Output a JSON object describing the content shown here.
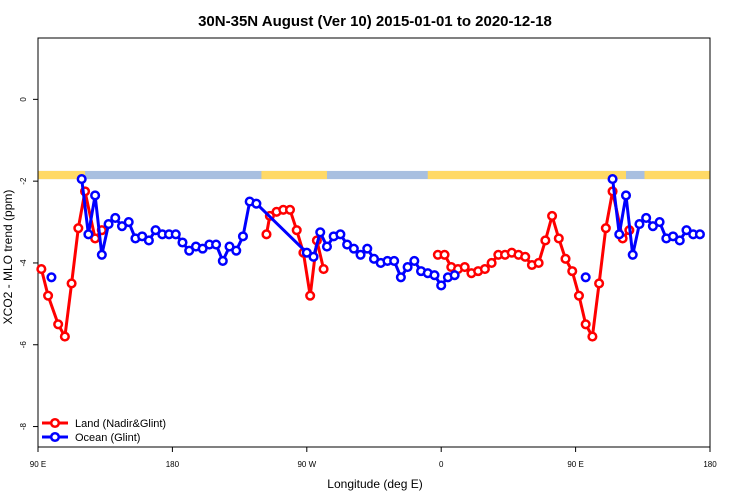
{
  "chart_data": {
    "type": "line",
    "title": "30N-35N August (Ver 10)   2015-01-01 to 2020-12-18",
    "xlabel": "Longitude (deg E)",
    "ylabel": "XCO2 - MLO trend (ppm)",
    "xlim": [
      0,
      400
    ],
    "ylim": [
      -8.5,
      1.5
    ],
    "x_ticks": [
      {
        "value": 0,
        "label": "90 E"
      },
      {
        "value": 80,
        "label": "180"
      },
      {
        "value": 160,
        "label": "90 W"
      },
      {
        "value": 240,
        "label": "0"
      },
      {
        "value": 320,
        "label": "90 E"
      },
      {
        "value": 400,
        "label": "180"
      }
    ],
    "y_ticks": [
      0,
      -2,
      -4,
      -6,
      -8
    ],
    "grid": false,
    "legend_position": "bottom-left",
    "surface_band": {
      "y_top": -1.75,
      "y_bottom": -1.95,
      "land_color": "#ffd966",
      "ocean_color": "#a8bfe0",
      "land_segments": [
        [
          0,
          28
        ],
        [
          133,
          172
        ],
        [
          232,
          350
        ],
        [
          361,
          400
        ]
      ]
    },
    "series": [
      {
        "name": "Land (Nadir&Glint)",
        "color": "#ff0000",
        "segments": [
          [
            [
              2,
              -4.15
            ],
            [
              6,
              -4.8
            ],
            [
              12,
              -5.5
            ],
            [
              16,
              -5.8
            ],
            [
              20,
              -4.5
            ],
            [
              24,
              -3.15
            ],
            [
              28,
              -2.25
            ],
            [
              34,
              -3.4
            ],
            [
              38,
              -3.2
            ]
          ],
          [
            [
              136,
              -3.3
            ],
            [
              138,
              -2.85
            ],
            [
              142,
              -2.75
            ],
            [
              146,
              -2.7
            ],
            [
              150,
              -2.7
            ],
            [
              154,
              -3.2
            ],
            [
              158,
              -3.75
            ],
            [
              162,
              -4.8
            ],
            [
              166,
              -3.45
            ],
            [
              170,
              -4.15
            ]
          ],
          [
            [
              238,
              -3.8
            ],
            [
              242,
              -3.8
            ],
            [
              246,
              -4.1
            ],
            [
              250,
              -4.15
            ],
            [
              254,
              -4.1
            ],
            [
              258,
              -4.25
            ],
            [
              262,
              -4.2
            ],
            [
              266,
              -4.15
            ],
            [
              270,
              -4.0
            ],
            [
              274,
              -3.8
            ],
            [
              278,
              -3.8
            ],
            [
              282,
              -3.75
            ],
            [
              286,
              -3.8
            ],
            [
              290,
              -3.85
            ],
            [
              294,
              -4.05
            ],
            [
              298,
              -4.0
            ],
            [
              302,
              -3.45
            ],
            [
              306,
              -2.85
            ],
            [
              310,
              -3.4
            ],
            [
              314,
              -3.9
            ],
            [
              318,
              -4.2
            ],
            [
              322,
              -4.8
            ],
            [
              326,
              -5.5
            ],
            [
              330,
              -5.8
            ],
            [
              334,
              -4.5
            ],
            [
              338,
              -3.15
            ],
            [
              342,
              -2.25
            ],
            [
              348,
              -3.4
            ],
            [
              352,
              -3.2
            ]
          ]
        ]
      },
      {
        "name": "Ocean (Glint)",
        "color": "#0000ff",
        "segments": [
          [
            [
              8,
              -4.35
            ]
          ],
          [
            [
              26,
              -1.95
            ],
            [
              30,
              -3.3
            ],
            [
              34,
              -2.35
            ],
            [
              38,
              -3.8
            ],
            [
              42,
              -3.05
            ],
            [
              46,
              -2.9
            ],
            [
              50,
              -3.1
            ],
            [
              54,
              -3.0
            ],
            [
              58,
              -3.4
            ],
            [
              62,
              -3.35
            ],
            [
              66,
              -3.45
            ],
            [
              70,
              -3.2
            ],
            [
              74,
              -3.3
            ],
            [
              78,
              -3.3
            ],
            [
              82,
              -3.3
            ],
            [
              86,
              -3.5
            ],
            [
              90,
              -3.7
            ],
            [
              94,
              -3.6
            ],
            [
              98,
              -3.65
            ],
            [
              102,
              -3.55
            ],
            [
              106,
              -3.55
            ],
            [
              110,
              -3.95
            ],
            [
              114,
              -3.6
            ],
            [
              118,
              -3.7
            ],
            [
              122,
              -3.35
            ],
            [
              126,
              -2.5
            ],
            [
              130,
              -2.55
            ],
            [
              160,
              -3.75
            ],
            [
              164,
              -3.85
            ],
            [
              168,
              -3.25
            ],
            [
              172,
              -3.6
            ],
            [
              176,
              -3.35
            ],
            [
              180,
              -3.3
            ],
            [
              184,
              -3.55
            ],
            [
              188,
              -3.65
            ],
            [
              192,
              -3.8
            ],
            [
              196,
              -3.65
            ],
            [
              200,
              -3.9
            ],
            [
              204,
              -4.0
            ],
            [
              208,
              -3.95
            ],
            [
              212,
              -3.95
            ],
            [
              216,
              -4.35
            ],
            [
              220,
              -4.1
            ],
            [
              224,
              -3.95
            ],
            [
              228,
              -4.2
            ],
            [
              232,
              -4.25
            ],
            [
              236,
              -4.3
            ],
            [
              240,
              -4.55
            ],
            [
              244,
              -4.35
            ],
            [
              248,
              -4.3
            ]
          ],
          [
            [
              326,
              -4.35
            ]
          ],
          [
            [
              342,
              -1.95
            ],
            [
              346,
              -3.3
            ],
            [
              350,
              -2.35
            ],
            [
              354,
              -3.8
            ],
            [
              358,
              -3.05
            ],
            [
              362,
              -2.9
            ],
            [
              366,
              -3.1
            ],
            [
              370,
              -3.0
            ],
            [
              374,
              -3.4
            ],
            [
              378,
              -3.35
            ],
            [
              382,
              -3.45
            ],
            [
              386,
              -3.2
            ],
            [
              390,
              -3.3
            ],
            [
              394,
              -3.3
            ]
          ]
        ]
      }
    ]
  }
}
